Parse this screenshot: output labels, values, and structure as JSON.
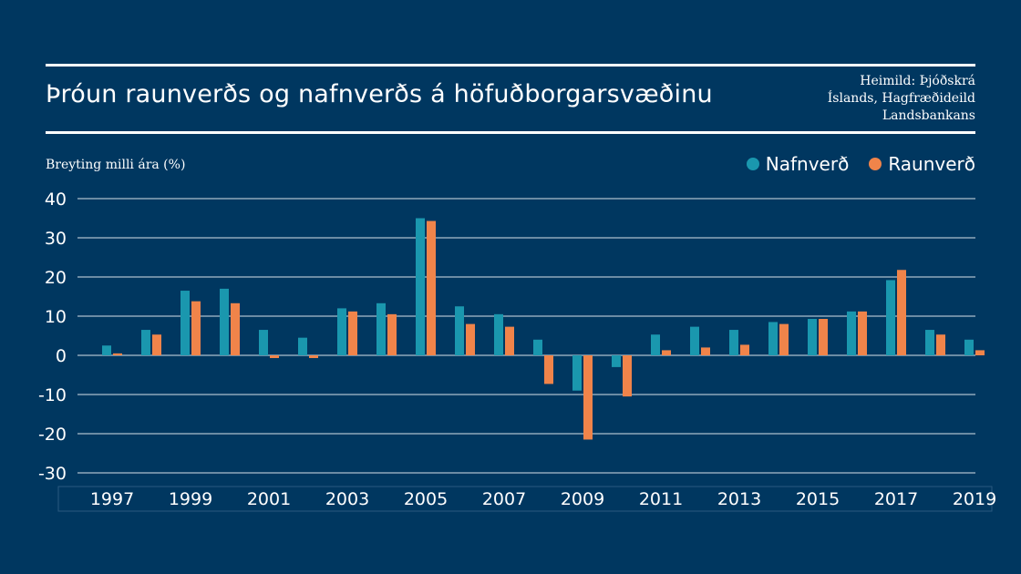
{
  "header": {
    "title": "Þróun raunverðs og nafnverðs á höfuðborgarsvæðinu",
    "source_lines": [
      "Heimild: Þjóðskrá",
      "Íslands, Hagfræðideild",
      "Landsbankans"
    ]
  },
  "colors": {
    "background": "#003760",
    "nafnverd": "#1A97AE",
    "raunverd": "#F0844A"
  },
  "chart_data": {
    "type": "bar",
    "title": "Þróun raunverðs og nafnverðs á höfuðborgarsvæðinu",
    "ylabel": "Breyting milli ára (%)",
    "xlabel": "",
    "ylim": [
      -30,
      40
    ],
    "yticks": [
      40,
      30,
      20,
      10,
      0,
      -10,
      -20,
      -30
    ],
    "grid": true,
    "legend_position": "top-right",
    "categories": [
      "1997",
      "1998",
      "1999",
      "2000",
      "2001",
      "2002",
      "2003",
      "2004",
      "2005",
      "2006",
      "2007",
      "2008",
      "2009",
      "2010",
      "2011",
      "2012",
      "2013",
      "2014",
      "2015",
      "2016",
      "2017",
      "2018",
      "2019"
    ],
    "xtick_labels": [
      "1997",
      "1999",
      "2001",
      "2003",
      "2005",
      "2007",
      "2009",
      "2011",
      "2013",
      "2015",
      "2017",
      "2019"
    ],
    "series": [
      {
        "name": "Nafnverð",
        "values": [
          2.5,
          6.5,
          16.5,
          17,
          6.5,
          4.5,
          12,
          13.3,
          35,
          12.5,
          10.5,
          4,
          -9,
          -3,
          5.3,
          7.3,
          6.5,
          8.5,
          9.3,
          11.2,
          19.2,
          6.5,
          4
        ]
      },
      {
        "name": "Raunverð",
        "values": [
          0.5,
          5.3,
          13.8,
          13.3,
          -0.7,
          -0.7,
          11.2,
          10.5,
          34.3,
          8,
          7.3,
          -7.3,
          -21.5,
          -10.5,
          1.3,
          2,
          2.7,
          8,
          9.3,
          11.2,
          21.8,
          5.3,
          1.3
        ]
      }
    ]
  }
}
